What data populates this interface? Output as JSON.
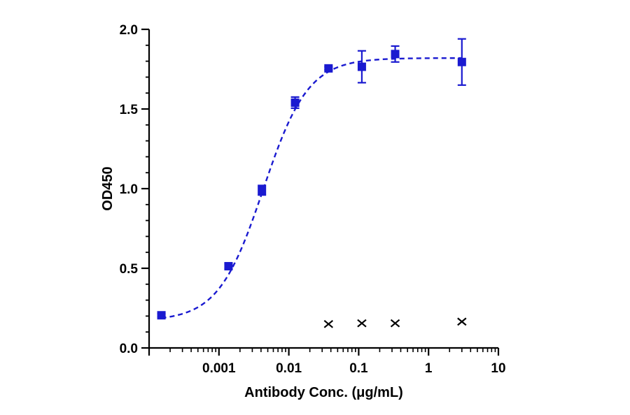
{
  "chart_data": {
    "type": "scatter",
    "title": "",
    "xlabel": "Antibody Conc. (μg/mL)",
    "ylabel": "OD450",
    "xscale": "log",
    "xlim": [
      0.0001,
      10
    ],
    "ylim": [
      0,
      2.0
    ],
    "x_ticks": [
      {
        "value": 0.001,
        "label": "0.001"
      },
      {
        "value": 0.01,
        "label": "0.01"
      },
      {
        "value": 0.1,
        "label": "0.1"
      },
      {
        "value": 1,
        "label": "1"
      },
      {
        "value": 10,
        "label": "10"
      }
    ],
    "y_ticks": [
      {
        "value": 0.0,
        "label": "0.0"
      },
      {
        "value": 0.5,
        "label": "0.5"
      },
      {
        "value": 1.0,
        "label": "1.0"
      },
      {
        "value": 1.5,
        "label": "1.5"
      },
      {
        "value": 2.0,
        "label": "2.0"
      }
    ],
    "grid": false,
    "legend": "none",
    "series": [
      {
        "color": "#1a1ad0",
        "marker": "square",
        "fit": "4PL",
        "fit_params": {
          "bottom": 0.17,
          "top": 1.82,
          "ec50": 0.0043,
          "hill": 1.35
        },
        "points": [
          {
            "x": 0.00015,
            "y": 0.205,
            "err": 0.01
          },
          {
            "x": 0.00137,
            "y": 0.513,
            "err": 0.015
          },
          {
            "x": 0.00412,
            "y": 0.99,
            "err": 0.03
          },
          {
            "x": 0.0123,
            "y": 1.54,
            "err": 0.035
          },
          {
            "x": 0.037,
            "y": 1.755,
            "err": 0.01
          },
          {
            "x": 0.111,
            "y": 1.765,
            "err": 0.1
          },
          {
            "x": 0.333,
            "y": 1.845,
            "err": 0.05
          },
          {
            "x": 3.0,
            "y": 1.795,
            "err": 0.145
          }
        ]
      },
      {
        "color": "#000000",
        "marker": "x",
        "points": [
          {
            "x": 0.037,
            "y": 0.15
          },
          {
            "x": 0.111,
            "y": 0.155
          },
          {
            "x": 0.333,
            "y": 0.155
          },
          {
            "x": 3.0,
            "y": 0.165
          }
        ]
      }
    ]
  }
}
